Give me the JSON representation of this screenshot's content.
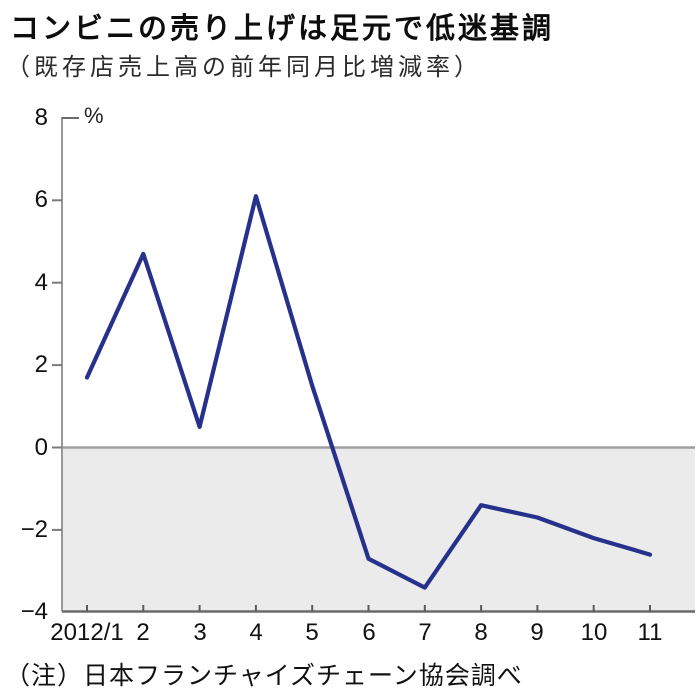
{
  "header": {
    "title": "コンビニの売り上げは足元で低迷基調",
    "subtitle": "（既存店売上高の前年同月比増減率）"
  },
  "chart_data": {
    "type": "line",
    "title": "コンビニの売り上げは足元で低迷基調",
    "subtitle": "（既存店売上高の前年同月比増減率）",
    "unit_label": "%",
    "series_name": "既存店売上高の前年同月比増減率",
    "categories": [
      "2012/1",
      "2",
      "3",
      "4",
      "5",
      "6",
      "7",
      "8",
      "9",
      "10",
      "11"
    ],
    "values": [
      1.7,
      4.7,
      0.5,
      6.1,
      1.5,
      -2.7,
      -3.4,
      -1.4,
      -1.7,
      -2.2,
      -2.6
    ],
    "yticks": [
      8,
      6,
      4,
      2,
      0,
      -2,
      -4
    ],
    "ylim": [
      -4,
      8
    ],
    "xlabel": "",
    "ylabel": "%",
    "grid": false,
    "legend_position": "none",
    "line_color": "#26318c",
    "negative_region_color": "#ebebeb",
    "zero_line_color": "#a0a0a0",
    "axis_color": "#6b6b6b"
  },
  "footnote": {
    "text": "（注）日本フランチャイズチェーン協会調べ"
  }
}
